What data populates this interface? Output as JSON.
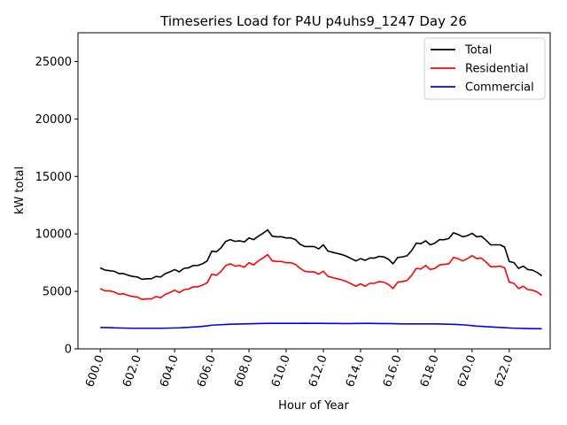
{
  "chart_data": {
    "type": "line",
    "title": "Timeseries Load for P4U p4uhs9_1247  Day 26",
    "xlabel": "Hour of Year",
    "ylabel": "kW total",
    "xlim": [
      598.8,
      624.2
    ],
    "ylim": [
      0,
      27500
    ],
    "xticks": [
      600,
      602,
      604,
      606,
      608,
      610,
      612,
      614,
      616,
      618,
      620,
      622
    ],
    "xtick_labels": [
      "600.0",
      "602.0",
      "604.0",
      "606.0",
      "608.0",
      "610.0",
      "612.0",
      "614.0",
      "616.0",
      "618.0",
      "620.0",
      "622.0"
    ],
    "yticks": [
      0,
      5000,
      10000,
      15000,
      20000,
      25000
    ],
    "ytick_labels": [
      "0",
      "5000",
      "10000",
      "15000",
      "20000",
      "25000"
    ],
    "legend_position": "top-right",
    "x": [
      600.0,
      600.25,
      600.5,
      600.75,
      601.0,
      601.25,
      601.5,
      601.75,
      602.0,
      602.25,
      602.5,
      602.75,
      603.0,
      603.25,
      603.5,
      603.75,
      604.0,
      604.25,
      604.5,
      604.75,
      605.0,
      605.25,
      605.5,
      605.75,
      606.0,
      606.25,
      606.5,
      606.75,
      607.0,
      607.25,
      607.5,
      607.75,
      608.0,
      608.25,
      608.5,
      608.75,
      609.0,
      609.25,
      609.5,
      609.75,
      610.0,
      610.25,
      610.5,
      610.75,
      611.0,
      611.25,
      611.5,
      611.75,
      612.0,
      612.25,
      612.5,
      612.75,
      613.0,
      613.25,
      613.5,
      613.75,
      614.0,
      614.25,
      614.5,
      614.75,
      615.0,
      615.25,
      615.5,
      615.75,
      616.0,
      616.25,
      616.5,
      616.75,
      617.0,
      617.25,
      617.5,
      617.75,
      618.0,
      618.25,
      618.5,
      618.75,
      619.0,
      619.25,
      619.5,
      619.75,
      620.0,
      620.25,
      620.5,
      620.75,
      621.0,
      621.25,
      621.5,
      621.75,
      622.0,
      622.25,
      622.5,
      622.75,
      623.0,
      623.25,
      623.5,
      623.75
    ],
    "series": [
      {
        "name": "Total",
        "color": "#000000",
        "values": [
          7050,
          6850,
          6800,
          6750,
          6550,
          6550,
          6400,
          6300,
          6250,
          6050,
          6100,
          6100,
          6300,
          6250,
          6550,
          6700,
          6900,
          6700,
          7000,
          7050,
          7250,
          7250,
          7400,
          7650,
          8500,
          8450,
          8800,
          9350,
          9500,
          9350,
          9400,
          9300,
          9650,
          9500,
          9800,
          10050,
          10350,
          9800,
          9750,
          9750,
          9650,
          9650,
          9500,
          9100,
          8900,
          8900,
          8900,
          8700,
          9050,
          8500,
          8400,
          8300,
          8200,
          8050,
          7850,
          7650,
          7850,
          7700,
          7900,
          7900,
          8050,
          8000,
          7800,
          7400,
          7950,
          8000,
          8100,
          8550,
          9200,
          9150,
          9400,
          9050,
          9200,
          9500,
          9500,
          9600,
          10100,
          9950,
          9750,
          9850,
          10050,
          9750,
          9800,
          9450,
          9050,
          9050,
          9050,
          8850,
          7600,
          7500,
          7000,
          7200,
          6900,
          6850,
          6650,
          6350
        ]
      },
      {
        "name": "Residential",
        "color": "#ff0000",
        "values": [
          5250,
          5050,
          5050,
          4950,
          4750,
          4800,
          4650,
          4550,
          4500,
          4300,
          4350,
          4350,
          4550,
          4450,
          4750,
          4900,
          5100,
          4900,
          5150,
          5200,
          5400,
          5400,
          5550,
          5750,
          6500,
          6400,
          6750,
          7250,
          7400,
          7200,
          7250,
          7100,
          7500,
          7300,
          7650,
          7900,
          8200,
          7650,
          7600,
          7600,
          7500,
          7500,
          7350,
          7000,
          6750,
          6700,
          6700,
          6500,
          6750,
          6300,
          6200,
          6100,
          6000,
          5850,
          5650,
          5450,
          5650,
          5450,
          5700,
          5700,
          5850,
          5800,
          5600,
          5250,
          5800,
          5850,
          5950,
          6400,
          7000,
          6950,
          7250,
          6900,
          7000,
          7300,
          7350,
          7400,
          7950,
          7850,
          7650,
          7850,
          8100,
          7850,
          7900,
          7550,
          7150,
          7150,
          7200,
          7050,
          5800,
          5700,
          5250,
          5450,
          5150,
          5100,
          4950,
          4650
        ]
      },
      {
        "name": "Commercial",
        "color": "#0000ff",
        "values": [
          1850,
          1850,
          1840,
          1830,
          1820,
          1810,
          1800,
          1790,
          1790,
          1790,
          1790,
          1790,
          1790,
          1790,
          1800,
          1810,
          1820,
          1830,
          1850,
          1870,
          1900,
          1920,
          1960,
          2000,
          2060,
          2080,
          2100,
          2120,
          2140,
          2150,
          2160,
          2170,
          2180,
          2190,
          2200,
          2210,
          2220,
          2220,
          2220,
          2220,
          2220,
          2220,
          2220,
          2220,
          2230,
          2220,
          2220,
          2220,
          2220,
          2210,
          2210,
          2210,
          2200,
          2200,
          2200,
          2210,
          2210,
          2220,
          2220,
          2210,
          2200,
          2200,
          2200,
          2190,
          2180,
          2170,
          2170,
          2170,
          2170,
          2170,
          2170,
          2170,
          2170,
          2160,
          2150,
          2140,
          2130,
          2110,
          2090,
          2060,
          2020,
          1980,
          1960,
          1930,
          1910,
          1880,
          1860,
          1840,
          1820,
          1800,
          1790,
          1780,
          1770,
          1760,
          1760,
          1750
        ]
      }
    ]
  }
}
